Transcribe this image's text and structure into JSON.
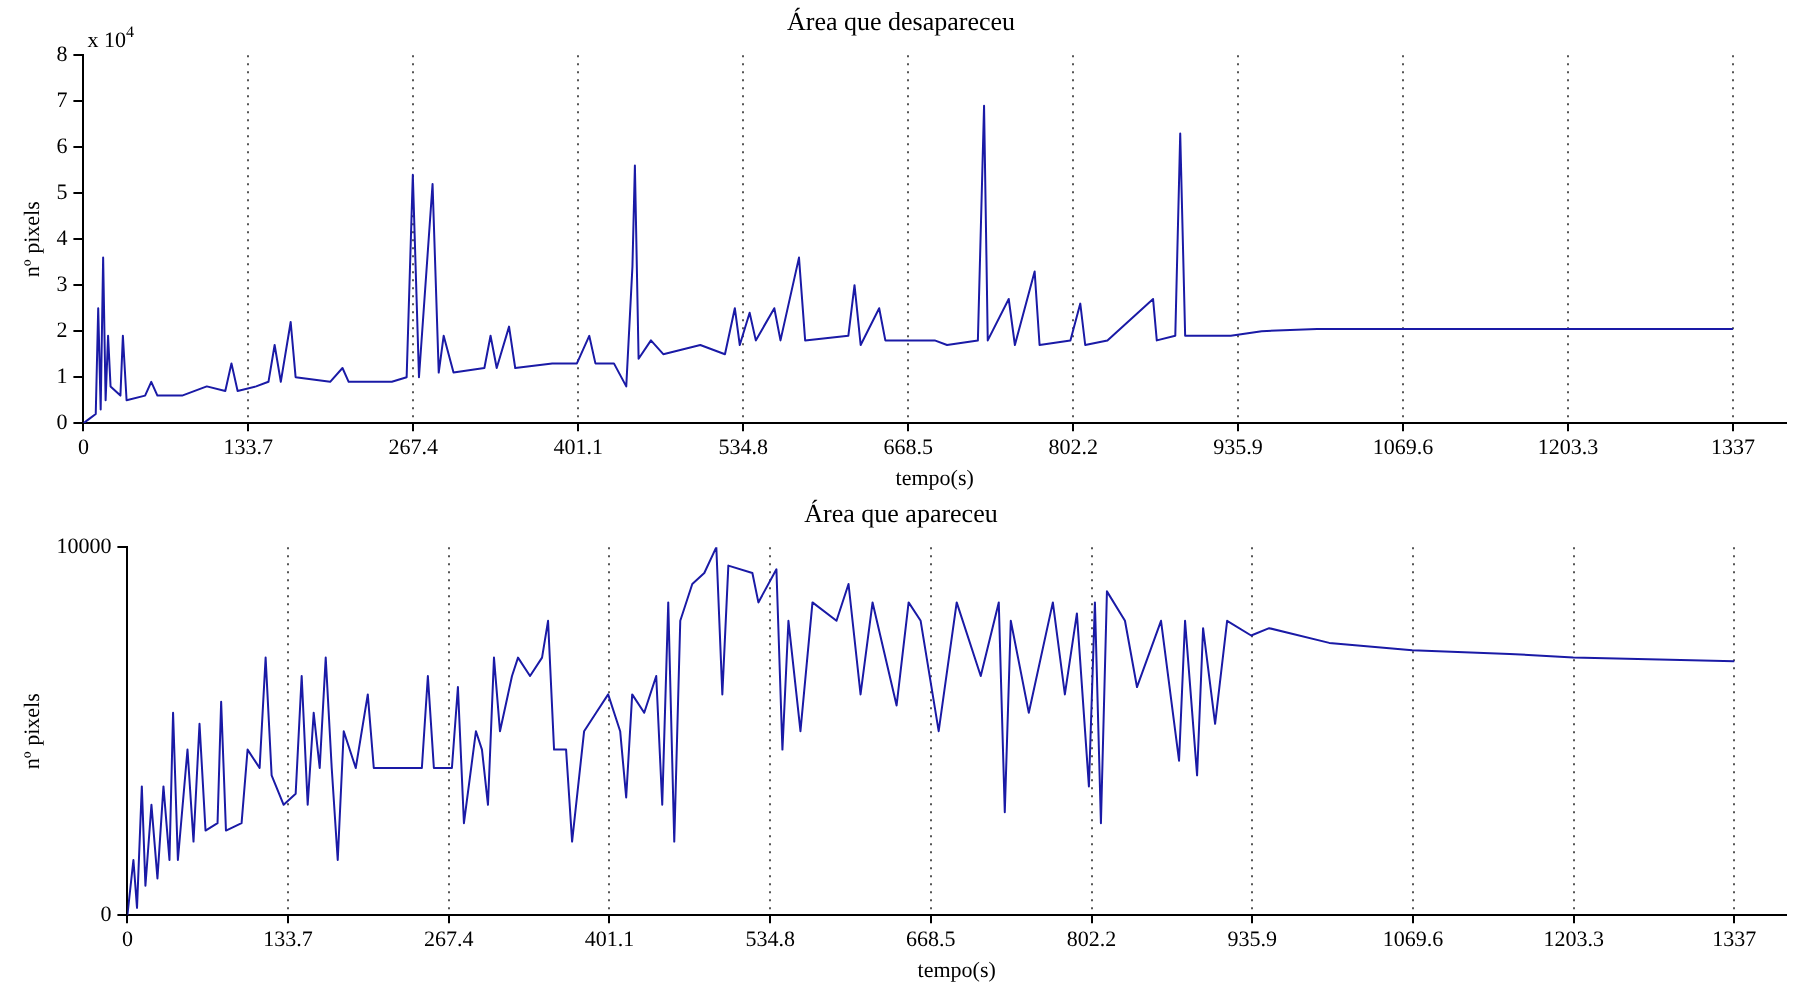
{
  "chart_data": [
    {
      "type": "line",
      "title": "Área que desapareceu",
      "xlabel": "tempo(s)",
      "ylabel": "nº pixels",
      "annotations": [
        "x 10$^{4}$"
      ],
      "grid": "x",
      "xlim": [
        0,
        1380
      ],
      "xticks": [
        0,
        133.7,
        267.4,
        401.1,
        534.8,
        668.5,
        802.2,
        935.9,
        1069.6,
        1203.3,
        1337
      ],
      "ylim": [
        0,
        8
      ],
      "yticks": [
        0,
        1,
        2,
        3,
        4,
        5,
        6,
        7,
        8
      ],
      "x": [
        0,
        5,
        10,
        12,
        14,
        16,
        18,
        20,
        22,
        30,
        32,
        35,
        50,
        55,
        60,
        80,
        100,
        115,
        120,
        125,
        140,
        150,
        155,
        160,
        168,
        172,
        200,
        210,
        215,
        250,
        262,
        267,
        272,
        283,
        288,
        292,
        300,
        325,
        330,
        335,
        345,
        350,
        380,
        400,
        410,
        415,
        430,
        440,
        445,
        447,
        450,
        460,
        470,
        500,
        520,
        528,
        532,
        540,
        545,
        560,
        565,
        580,
        585,
        620,
        625,
        630,
        645,
        650,
        690,
        700,
        725,
        730,
        733,
        750,
        755,
        771,
        775,
        800,
        808,
        812,
        830,
        867,
        870,
        885,
        889,
        893,
        930,
        955,
        1000,
        1100,
        1200,
        1337
      ],
      "series": [
        {
          "color": "#1a1aa6",
          "values": [
            0,
            0.1,
            0.2,
            2.5,
            0.3,
            3.6,
            0.5,
            1.9,
            0.8,
            0.6,
            1.9,
            0.5,
            0.6,
            0.9,
            0.6,
            0.6,
            0.8,
            0.7,
            1.3,
            0.7,
            0.8,
            0.9,
            1.7,
            0.9,
            2.2,
            1.0,
            0.9,
            1.2,
            0.9,
            0.9,
            1.0,
            5.4,
            1.0,
            5.2,
            1.1,
            1.9,
            1.1,
            1.2,
            1.9,
            1.2,
            2.1,
            1.2,
            1.3,
            1.3,
            1.9,
            1.3,
            1.3,
            0.8,
            3.4,
            5.6,
            1.4,
            1.8,
            1.5,
            1.7,
            1.5,
            2.5,
            1.7,
            2.4,
            1.8,
            2.5,
            1.8,
            3.6,
            1.8,
            1.9,
            3.0,
            1.7,
            2.5,
            1.8,
            1.8,
            1.7,
            1.8,
            6.9,
            1.8,
            2.7,
            1.7,
            3.3,
            1.7,
            1.8,
            2.6,
            1.7,
            1.8,
            2.7,
            1.8,
            1.9,
            6.3,
            1.9,
            1.9,
            2.0,
            2.05,
            2.05,
            2.05,
            2.05
          ]
        }
      ]
    },
    {
      "type": "line",
      "title": "Área que apareceu",
      "xlabel": "tempo(s)",
      "ylabel": "nº pixels",
      "grid": "x",
      "xlim": [
        0,
        1380
      ],
      "xticks": [
        0,
        133.7,
        267.4,
        401.1,
        534.8,
        668.5,
        802.2,
        935.9,
        1069.6,
        1203.3,
        1337
      ],
      "ylim": [
        0,
        10000
      ],
      "yticks": [
        0,
        10000
      ],
      "x": [
        0,
        5,
        8,
        12,
        15,
        20,
        25,
        30,
        35,
        38,
        42,
        50,
        55,
        60,
        65,
        75,
        78,
        82,
        95,
        100,
        110,
        115,
        120,
        130,
        140,
        145,
        150,
        155,
        160,
        165,
        170,
        175,
        180,
        190,
        200,
        205,
        225,
        245,
        250,
        255,
        270,
        275,
        280,
        290,
        295,
        300,
        305,
        310,
        320,
        325,
        335,
        345,
        350,
        355,
        365,
        370,
        380,
        390,
        400,
        410,
        415,
        420,
        430,
        440,
        445,
        450,
        455,
        460,
        470,
        480,
        490,
        495,
        500,
        520,
        525,
        540,
        545,
        550,
        560,
        570,
        590,
        600,
        610,
        620,
        640,
        650,
        660,
        675,
        690,
        710,
        725,
        730,
        735,
        750,
        770,
        780,
        790,
        800,
        805,
        810,
        815,
        830,
        840,
        860,
        875,
        880,
        890,
        895,
        905,
        915,
        935,
        950,
        1000,
        1069,
        1150,
        1203,
        1337
      ],
      "series": [
        {
          "color": "#1a1aa6",
          "values": [
            0,
            1500,
            200,
            3500,
            800,
            3000,
            1000,
            3500,
            1500,
            5500,
            1500,
            4500,
            2000,
            5200,
            2300,
            2500,
            5800,
            2300,
            2500,
            4500,
            4000,
            7000,
            3800,
            3000,
            3300,
            6500,
            3000,
            5500,
            4000,
            7000,
            4000,
            1500,
            5000,
            4000,
            6000,
            4000,
            4000,
            4000,
            6500,
            4000,
            4000,
            6200,
            2500,
            5000,
            4500,
            3000,
            7000,
            5000,
            6500,
            7000,
            6500,
            7000,
            8000,
            4500,
            4500,
            2000,
            5000,
            5500,
            6000,
            5000,
            3200,
            6000,
            5500,
            6500,
            3000,
            8500,
            2000,
            8000,
            9000,
            9300,
            10000,
            6000,
            9500,
            9300,
            8500,
            9400,
            4500,
            8000,
            5000,
            8500,
            8000,
            9000,
            6000,
            8500,
            5700,
            8500,
            8000,
            5000,
            8500,
            6500,
            8500,
            2800,
            8000,
            5500,
            8500,
            6000,
            8200,
            3500,
            8500,
            2500,
            8800,
            8000,
            6200,
            8000,
            4200,
            8000,
            3800,
            7800,
            5200,
            8000,
            7600,
            7800,
            7400,
            7200,
            7100,
            7000,
            6900
          ]
        }
      ]
    }
  ]
}
